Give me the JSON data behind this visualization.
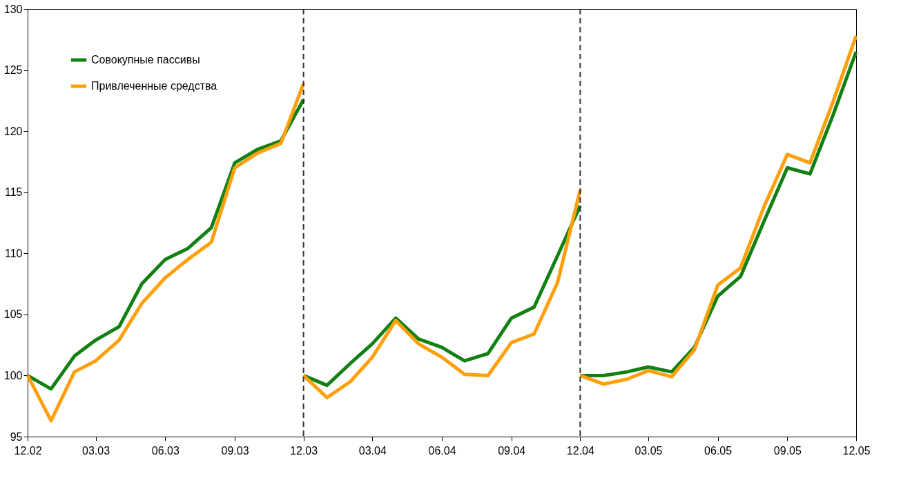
{
  "chart_data": {
    "type": "line",
    "legend": "top left",
    "grid": false,
    "line_style": "solid",
    "marker": "none",
    "x": [
      "2002-12",
      "2003-01",
      "2003-02",
      "2003-03",
      "2003-04",
      "2003-05",
      "2003-06",
      "2003-07",
      "2003-08",
      "2003-09",
      "2003-10",
      "2003-11",
      "2003-12",
      "2003-12",
      "2004-01",
      "2004-02",
      "2004-03",
      "2004-04",
      "2004-05",
      "2004-06",
      "2004-07",
      "2004-08",
      "2004-09",
      "2004-10",
      "2004-11",
      "2004-12",
      "2004-12",
      "2005-01",
      "2005-02",
      "2005-03",
      "2005-04",
      "2005-05",
      "2005-06",
      "2005-07",
      "2005-08",
      "2005-09",
      "2005-10",
      "2005-11",
      "2005-12"
    ],
    "series": [
      {
        "name": "Совокупные пассивы",
        "color": "#128012",
        "values": [
          100,
          98.9,
          101.6,
          102.9,
          104.0,
          107.5,
          109.5,
          110.4,
          112.1,
          117.4,
          118.5,
          119.2,
          122.6,
          100,
          99.2,
          101.0,
          102.6,
          104.7,
          103.0,
          102.3,
          101.2,
          101.8,
          104.7,
          105.6,
          109.8,
          113.9,
          100,
          100.0,
          100.3,
          100.7,
          100.3,
          102.3,
          106.5,
          108.1,
          112.6,
          117.0,
          116.5,
          121.4,
          126.5
        ]
      },
      {
        "name": "Привлеченные средства",
        "color": "#ff9f0a",
        "values": [
          100,
          96.3,
          100.3,
          101.2,
          102.9,
          105.9,
          108.0,
          109.5,
          110.9,
          117.0,
          118.2,
          119.0,
          123.9,
          100,
          98.2,
          99.5,
          101.5,
          104.5,
          102.6,
          101.5,
          100.1,
          100.0,
          102.7,
          103.4,
          107.6,
          115.2,
          100,
          99.3,
          99.7,
          100.4,
          99.9,
          102.1,
          107.4,
          108.8,
          113.8,
          118.1,
          117.4,
          122.5,
          127.8
        ]
      }
    ],
    "xlim": [
      "2002-12",
      "2005-12"
    ],
    "xticks": [
      {
        "value": "2002-12",
        "label": "12.02"
      },
      {
        "value": "2003-03",
        "label": "03.03"
      },
      {
        "value": "2003-06",
        "label": "06.03"
      },
      {
        "value": "2003-09",
        "label": "09.03"
      },
      {
        "value": "2003-12",
        "label": "12.03"
      },
      {
        "value": "2004-03",
        "label": "03.04"
      },
      {
        "value": "2004-06",
        "label": "06.04"
      },
      {
        "value": "2004-09",
        "label": "09.04"
      },
      {
        "value": "2004-12",
        "label": "12.04"
      },
      {
        "value": "2005-03",
        "label": "03.05"
      },
      {
        "value": "2005-06",
        "label": "06.05"
      },
      {
        "value": "2005-09",
        "label": "09.05"
      },
      {
        "value": "2005-12",
        "label": "12.05"
      }
    ],
    "ylim": [
      95,
      130
    ],
    "yticks": [
      95,
      100,
      105,
      110,
      115,
      120,
      125,
      130
    ],
    "ref_lines": [
      {
        "axis": "x",
        "value": "2003-12",
        "color": "#333333",
        "line_style": "dashed"
      },
      {
        "axis": "x",
        "value": "2004-12",
        "color": "#333333",
        "line_style": "dashed"
      }
    ]
  }
}
